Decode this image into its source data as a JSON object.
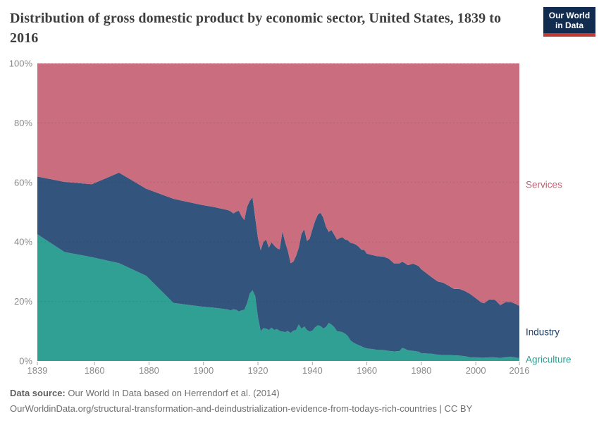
{
  "header": {
    "title": "Distribution of gross domestic product by economic sector, United States, 1839 to 2016",
    "logo": {
      "line1": "Our World",
      "line2": "in Data"
    }
  },
  "footer": {
    "source_label": "Data source:",
    "source_text": " Our World In Data based on Herrendorf et al. (2014)",
    "url_text": "OurWorldinData.org/structural-transformation-and-deindustrialization-evidence-from-todays-rich-countries | CC BY"
  },
  "colors": {
    "agriculture": "#31a094",
    "industry": "#33547c",
    "services": "#ca6e7f",
    "label_agriculture": "#2b9d90",
    "label_industry": "#1f4066",
    "label_services": "#c05e72",
    "axis_text": "#8a8a8a",
    "tick": "#a6a6a6",
    "grid": "#2d2d2d",
    "title": "#3f3f3f",
    "logo_bg": "#112c4e",
    "logo_red": "#c03a32"
  },
  "chart_data": {
    "type": "area",
    "stacked": true,
    "unit": "%",
    "title": "Distribution of gross domestic product by economic sector, United States, 1839 to 2016",
    "x_range": [
      1839,
      2016
    ],
    "y_range": [
      0,
      100
    ],
    "x_ticks": [
      1839,
      1860,
      1880,
      1900,
      1920,
      1940,
      1960,
      1980,
      2000,
      2016
    ],
    "y_ticks": [
      0,
      20,
      40,
      60,
      80,
      100
    ],
    "y_tick_suffix": "%",
    "grid": "dashed-horizontal",
    "legend_position": "right-edge-labels",
    "series_order_bottom_to_top": [
      "Agriculture",
      "Industry",
      "Services"
    ],
    "point_columns": [
      "year",
      "agriculture_pct",
      "industry_pct",
      "services_pct"
    ],
    "points": [
      [
        1839,
        42.6,
        19.4,
        38.0
      ],
      [
        1849,
        36.6,
        23.6,
        39.8
      ],
      [
        1859,
        34.9,
        24.5,
        40.6
      ],
      [
        1869,
        32.9,
        30.4,
        36.7
      ],
      [
        1879,
        28.6,
        29.3,
        42.1
      ],
      [
        1889,
        19.5,
        35.0,
        45.5
      ],
      [
        1899,
        18.3,
        34.2,
        47.5
      ],
      [
        1904,
        17.9,
        33.8,
        48.3
      ],
      [
        1909,
        17.3,
        33.4,
        49.3
      ],
      [
        1910,
        17.0,
        33.3,
        49.7
      ],
      [
        1911,
        17.4,
        32.2,
        50.4
      ],
      [
        1912,
        17.2,
        33.0,
        49.8
      ],
      [
        1913,
        16.6,
        33.9,
        49.5
      ],
      [
        1914,
        17.0,
        31.6,
        51.4
      ],
      [
        1915,
        17.2,
        30.2,
        52.6
      ],
      [
        1916,
        19.4,
        32.4,
        48.2
      ],
      [
        1917,
        22.6,
        31.2,
        46.2
      ],
      [
        1918,
        23.8,
        31.2,
        45.0
      ],
      [
        1919,
        21.8,
        26.3,
        51.9
      ],
      [
        1920,
        14.8,
        26.6,
        58.6
      ],
      [
        1921,
        10.0,
        27.2,
        62.8
      ],
      [
        1922,
        11.0,
        29.0,
        60.0
      ],
      [
        1923,
        10.9,
        29.9,
        59.2
      ],
      [
        1924,
        10.4,
        27.7,
        61.9
      ],
      [
        1925,
        11.2,
        28.7,
        60.1
      ],
      [
        1926,
        10.4,
        28.4,
        61.2
      ],
      [
        1927,
        10.7,
        27.2,
        62.1
      ],
      [
        1928,
        10.1,
        27.4,
        62.5
      ],
      [
        1929,
        9.9,
        33.7,
        56.4
      ],
      [
        1930,
        9.7,
        30.2,
        60.1
      ],
      [
        1931,
        10.1,
        26.9,
        63.0
      ],
      [
        1932,
        9.4,
        23.5,
        67.1
      ],
      [
        1933,
        10.2,
        23.2,
        66.6
      ],
      [
        1934,
        10.4,
        24.9,
        64.7
      ],
      [
        1935,
        12.3,
        25.8,
        61.9
      ],
      [
        1936,
        10.8,
        31.9,
        57.3
      ],
      [
        1937,
        11.6,
        32.7,
        55.7
      ],
      [
        1938,
        10.4,
        29.9,
        59.7
      ],
      [
        1939,
        9.9,
        31.2,
        58.9
      ],
      [
        1940,
        10.2,
        34.1,
        55.7
      ],
      [
        1941,
        11.3,
        35.8,
        52.9
      ],
      [
        1942,
        12.0,
        37.2,
        50.8
      ],
      [
        1943,
        11.7,
        38.1,
        50.2
      ],
      [
        1944,
        10.9,
        37.2,
        51.9
      ],
      [
        1945,
        11.4,
        33.7,
        54.9
      ],
      [
        1946,
        12.8,
        30.6,
        56.6
      ],
      [
        1947,
        12.2,
        31.8,
        56.0
      ],
      [
        1948,
        11.4,
        31.1,
        57.5
      ],
      [
        1949,
        10.0,
        30.8,
        59.2
      ],
      [
        1950,
        9.9,
        31.4,
        58.7
      ],
      [
        1951,
        9.7,
        31.9,
        58.4
      ],
      [
        1952,
        9.2,
        31.6,
        59.2
      ],
      [
        1953,
        8.4,
        32.2,
        59.4
      ],
      [
        1954,
        6.9,
        32.8,
        60.3
      ],
      [
        1955,
        6.2,
        33.3,
        60.5
      ],
      [
        1956,
        5.7,
        33.4,
        60.9
      ],
      [
        1957,
        5.3,
        33.1,
        61.6
      ],
      [
        1958,
        4.9,
        32.5,
        62.6
      ],
      [
        1959,
        4.5,
        32.9,
        62.6
      ],
      [
        1960,
        4.2,
        31.9,
        63.9
      ],
      [
        1962,
        4.0,
        31.6,
        64.4
      ],
      [
        1964,
        3.7,
        31.5,
        64.8
      ],
      [
        1966,
        3.7,
        31.4,
        64.9
      ],
      [
        1968,
        3.4,
        31.0,
        65.6
      ],
      [
        1970,
        3.2,
        29.6,
        67.2
      ],
      [
        1972,
        3.3,
        29.5,
        67.2
      ],
      [
        1973,
        4.4,
        29.0,
        66.6
      ],
      [
        1974,
        4.1,
        28.8,
        67.1
      ],
      [
        1975,
        3.6,
        28.6,
        67.8
      ],
      [
        1977,
        3.4,
        29.3,
        67.3
      ],
      [
        1979,
        3.1,
        28.8,
        68.1
      ],
      [
        1980,
        2.6,
        28.2,
        69.2
      ],
      [
        1982,
        2.5,
        26.9,
        70.6
      ],
      [
        1984,
        2.4,
        25.6,
        72.0
      ],
      [
        1986,
        2.1,
        24.6,
        73.3
      ],
      [
        1988,
        2.0,
        24.3,
        73.7
      ],
      [
        1990,
        2.0,
        23.3,
        74.7
      ],
      [
        1992,
        1.9,
        22.3,
        75.8
      ],
      [
        1994,
        1.8,
        22.4,
        75.8
      ],
      [
        1996,
        1.6,
        21.9,
        76.5
      ],
      [
        1998,
        1.2,
        21.3,
        77.5
      ],
      [
        2000,
        1.2,
        19.9,
        78.9
      ],
      [
        2002,
        1.1,
        18.6,
        80.3
      ],
      [
        2003,
        1.1,
        18.3,
        80.6
      ],
      [
        2005,
        1.2,
        19.5,
        79.3
      ],
      [
        2007,
        1.2,
        19.4,
        79.4
      ],
      [
        2009,
        1.0,
        17.8,
        81.2
      ],
      [
        2011,
        1.3,
        18.5,
        80.2
      ],
      [
        2013,
        1.4,
        18.4,
        80.2
      ],
      [
        2015,
        1.1,
        17.9,
        81.0
      ],
      [
        2016,
        1.0,
        17.5,
        81.5
      ]
    ]
  }
}
